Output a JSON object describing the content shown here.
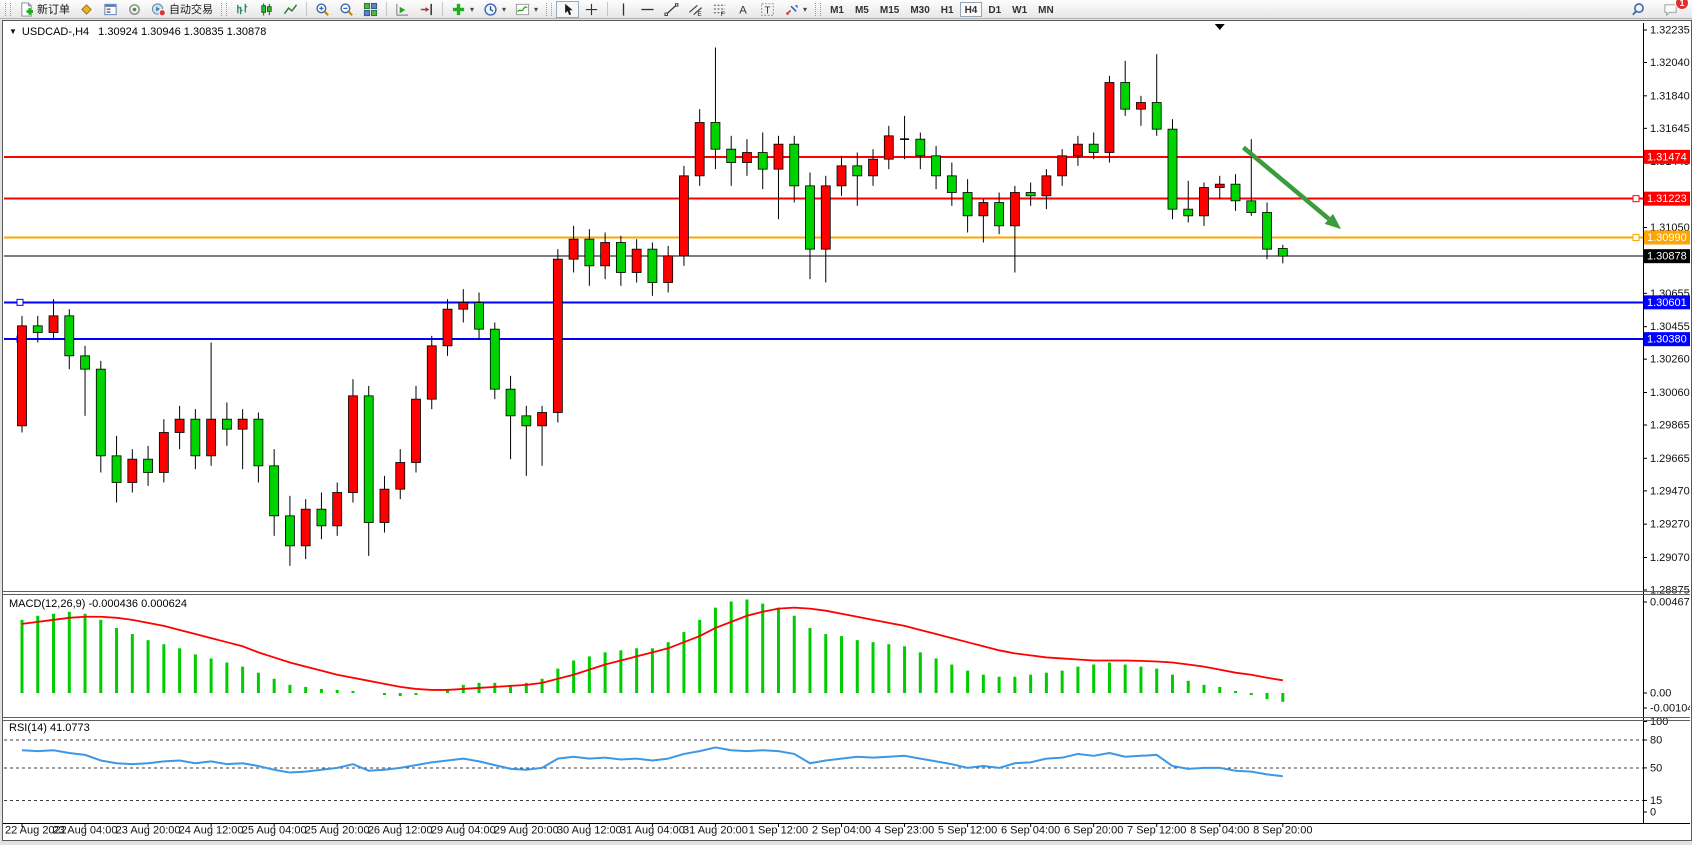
{
  "toolbar": {
    "new_order_label": "新订单",
    "auto_trading_label": "自动交易",
    "timeframes": [
      "M1",
      "M5",
      "M15",
      "M30",
      "H1",
      "H4",
      "D1",
      "W1",
      "MN"
    ],
    "active_timeframe": "H4",
    "notification_count": "1",
    "icons": {
      "new-order-icon": "document with green plus",
      "profiles-icon": "gold diamond",
      "market-watch-icon": "blue window",
      "signals-icon": "gray ring with green dot",
      "auto-trading-icon": "teal circle with red stop badge",
      "bar-chart-icon": "ohlc bars",
      "candle-chart-icon": "green candlesticks",
      "line-chart-icon": "green zigzag line",
      "zoom-in-icon": "magnifier plus",
      "zoom-out-icon": "magnifier minus",
      "tile-windows-icon": "four colored tiles",
      "auto-scroll-icon": "green play triangle on axes",
      "chart-shift-icon": "red arrow to right margin line",
      "indicators-icon": "green plus",
      "periods-icon": "blue clock",
      "templates-icon": "chart with green wave",
      "cursor-icon": "black pointer arrow",
      "crosshair-icon": "plus crosshair",
      "vline-icon": "vertical line",
      "hline-icon": "horizontal line",
      "trendline-icon": "diagonal line with end squares",
      "channel-icon": "parallel diagonals with E",
      "fibonacci-icon": "dashed levels with F",
      "text-icon": "letter A",
      "text-label-icon": "dashed box with T",
      "arrows-icon": "red and blue arrows",
      "search-icon": "blue magnifier",
      "chat-icon": "speech bubble with red badge"
    }
  },
  "chart": {
    "dropdown_glyph": "▼",
    "symbol_period": "USDCAD-,H4",
    "ohlc_text": "1.30924 1.30946 1.30835 1.30878",
    "macd_label": "MACD(12,26,9) -0.000436 0.000624",
    "rsi_label": "RSI(14) 41.0773"
  },
  "chart_data": {
    "type": "candlestick",
    "symbol": "USDCAD-",
    "timeframe": "H4",
    "convention": "red = bullish, green = bearish (CN colors)",
    "bull_color": "#FF0000",
    "bear_color": "#00D400",
    "current_bar": {
      "open": 1.30924,
      "high": 1.30946,
      "low": 1.30835,
      "close": 1.30878
    },
    "price_range": {
      "top": 1.32253,
      "bottom": 1.2885
    },
    "price_ticks": [
      1.32235,
      1.3204,
      1.3184,
      1.31645,
      1.31445,
      1.3105,
      1.30655,
      1.30455,
      1.3026,
      1.3006,
      1.29865,
      1.29665,
      1.2947,
      1.2927,
      1.2907,
      1.28875
    ],
    "time_labels": [
      "22 Aug 2022",
      "23 Aug 04:00",
      "23 Aug 20:00",
      "24 Aug 12:00",
      "25 Aug 04:00",
      "25 Aug 20:00",
      "26 Aug 12:00",
      "29 Aug 04:00",
      "29 Aug 20:00",
      "30 Aug 12:00",
      "31 Aug 04:00",
      "31 Aug 20:00",
      "1 Sep 12:00",
      "2 Sep 04:00",
      "4 Sep 23:00",
      "5 Sep 12:00",
      "6 Sep 04:00",
      "6 Sep 20:00",
      "7 Sep 12:00",
      "8 Sep 04:00",
      "8 Sep 20:00"
    ],
    "bars_per_label": 4,
    "candles": [
      [
        1.2986,
        1.3052,
        1.2982,
        1.3046
      ],
      [
        1.3046,
        1.3052,
        1.3036,
        1.3042
      ],
      [
        1.3042,
        1.3062,
        1.3038,
        1.3052
      ],
      [
        1.3052,
        1.3056,
        1.302,
        1.3028
      ],
      [
        1.3028,
        1.3034,
        1.2992,
        1.302
      ],
      [
        1.302,
        1.3025,
        1.2958,
        1.2968
      ],
      [
        1.2968,
        1.298,
        1.294,
        1.2952
      ],
      [
        1.2952,
        1.2972,
        1.2946,
        1.2966
      ],
      [
        1.2966,
        1.2974,
        1.295,
        1.2958
      ],
      [
        1.2958,
        1.299,
        1.2952,
        1.2982
      ],
      [
        1.2982,
        1.2998,
        1.2972,
        1.299
      ],
      [
        1.299,
        1.2996,
        1.296,
        1.2968
      ],
      [
        1.2968,
        1.3036,
        1.2962,
        1.299
      ],
      [
        1.299,
        1.3,
        1.2974,
        1.2984
      ],
      [
        1.2984,
        1.2996,
        1.296,
        1.299
      ],
      [
        1.299,
        1.2994,
        1.2952,
        1.2962
      ],
      [
        1.2962,
        1.2972,
        1.292,
        1.2932
      ],
      [
        1.2932,
        1.2944,
        1.2902,
        1.2914
      ],
      [
        1.2914,
        1.2942,
        1.2906,
        1.2936
      ],
      [
        1.2936,
        1.2946,
        1.2918,
        1.2926
      ],
      [
        1.2926,
        1.2952,
        1.292,
        1.2946
      ],
      [
        1.2946,
        1.3014,
        1.294,
        1.3004
      ],
      [
        1.3004,
        1.301,
        1.2908,
        1.2928
      ],
      [
        1.2928,
        1.2956,
        1.2922,
        1.2948
      ],
      [
        1.2948,
        1.2972,
        1.2942,
        1.2964
      ],
      [
        1.2964,
        1.301,
        1.2958,
        1.3002
      ],
      [
        1.3002,
        1.304,
        1.2996,
        1.3034
      ],
      [
        1.3034,
        1.3062,
        1.3028,
        1.3056
      ],
      [
        1.3056,
        1.3068,
        1.3048,
        1.306
      ],
      [
        1.306,
        1.3066,
        1.3038,
        1.3044
      ],
      [
        1.3044,
        1.3048,
        1.3002,
        1.3008
      ],
      [
        1.3008,
        1.3016,
        1.2966,
        1.2992
      ],
      [
        1.2992,
        1.2998,
        1.2956,
        1.2986
      ],
      [
        1.2986,
        1.2998,
        1.2962,
        1.2994
      ],
      [
        1.2994,
        1.3092,
        1.2988,
        1.3086
      ],
      [
        1.3086,
        1.3106,
        1.3078,
        1.3098
      ],
      [
        1.3098,
        1.3104,
        1.307,
        1.3082
      ],
      [
        1.3082,
        1.3102,
        1.3074,
        1.3096
      ],
      [
        1.3096,
        1.31,
        1.307,
        1.3078
      ],
      [
        1.3078,
        1.3098,
        1.3072,
        1.3092
      ],
      [
        1.3092,
        1.3096,
        1.3064,
        1.3072
      ],
      [
        1.3072,
        1.3094,
        1.3066,
        1.3088
      ],
      [
        1.3088,
        1.3142,
        1.3082,
        1.3136
      ],
      [
        1.3136,
        1.3176,
        1.313,
        1.3168
      ],
      [
        1.3168,
        1.3213,
        1.314,
        1.3152
      ],
      [
        1.3152,
        1.316,
        1.313,
        1.3144
      ],
      [
        1.3144,
        1.3158,
        1.3136,
        1.315
      ],
      [
        1.315,
        1.3162,
        1.3128,
        1.314
      ],
      [
        1.314,
        1.316,
        1.311,
        1.3155
      ],
      [
        1.3155,
        1.316,
        1.312,
        1.313
      ],
      [
        1.313,
        1.3138,
        1.3074,
        1.3092
      ],
      [
        1.3092,
        1.3136,
        1.3072,
        1.313
      ],
      [
        1.313,
        1.3148,
        1.3124,
        1.3142
      ],
      [
        1.3142,
        1.315,
        1.3118,
        1.3136
      ],
      [
        1.3136,
        1.3152,
        1.313,
        1.3146
      ],
      [
        1.3146,
        1.3166,
        1.314,
        1.316
      ],
      [
        1.3158,
        1.3172,
        1.3146,
        1.3158
      ],
      [
        1.3158,
        1.3162,
        1.314,
        1.3148
      ],
      [
        1.3148,
        1.3154,
        1.3128,
        1.3136
      ],
      [
        1.3136,
        1.3144,
        1.3118,
        1.3126
      ],
      [
        1.3126,
        1.3134,
        1.3102,
        1.3112
      ],
      [
        1.3112,
        1.3122,
        1.3096,
        1.312
      ],
      [
        1.312,
        1.3126,
        1.3101,
        1.3106
      ],
      [
        1.3106,
        1.313,
        1.3078,
        1.3126
      ],
      [
        1.3126,
        1.3132,
        1.3118,
        1.3124
      ],
      [
        1.3124,
        1.314,
        1.3116,
        1.3136
      ],
      [
        1.3136,
        1.3152,
        1.313,
        1.3148
      ],
      [
        1.3148,
        1.316,
        1.3142,
        1.3155
      ],
      [
        1.3155,
        1.3162,
        1.3146,
        1.315
      ],
      [
        1.315,
        1.3196,
        1.3144,
        1.3192
      ],
      [
        1.3192,
        1.3205,
        1.3172,
        1.3176
      ],
      [
        1.3176,
        1.3184,
        1.3166,
        1.318
      ],
      [
        1.318,
        1.3209,
        1.316,
        1.3164
      ],
      [
        1.3164,
        1.317,
        1.311,
        1.3116
      ],
      [
        1.3116,
        1.3133,
        1.3108,
        1.3112
      ],
      [
        1.3112,
        1.3132,
        1.3106,
        1.3129
      ],
      [
        1.3129,
        1.3136,
        1.3122,
        1.3131
      ],
      [
        1.3131,
        1.3137,
        1.3115,
        1.3121
      ],
      [
        1.3121,
        1.3158,
        1.3112,
        1.3114
      ],
      [
        1.3114,
        1.312,
        1.3086,
        1.3092
      ],
      [
        1.30924,
        1.30946,
        1.30835,
        1.30878
      ]
    ],
    "hlines": [
      {
        "price": 1.31474,
        "color": "#FF0000",
        "width": 2,
        "label": "1.31474"
      },
      {
        "price": 1.31223,
        "color": "#FF0000",
        "width": 2,
        "label": "1.31223",
        "handle": "right"
      },
      {
        "price": 1.3099,
        "color": "#FFA500",
        "width": 2,
        "label": "1.30990",
        "handle": "right"
      },
      {
        "price": 1.30878,
        "color": "#000000",
        "width": 1,
        "label": "1.30878",
        "role": "last-price"
      },
      {
        "price": 1.30601,
        "color": "#0000FF",
        "width": 2,
        "label": "1.30601",
        "handle": "left"
      },
      {
        "price": 1.3038,
        "color": "#0000FF",
        "width": 2,
        "label": "1.30380",
        "handle": "left"
      }
    ],
    "arrow": {
      "color": "#3C9B3C",
      "from": {
        "bar": 77.5,
        "price": 1.3153
      },
      "to": {
        "bar": 83.7,
        "price": 1.3104
      }
    },
    "shift_marker_bar": 76,
    "macd": {
      "params": "12,26,9",
      "value": -0.000436,
      "signal_value": 0.000624,
      "hist_color": "#00CC00",
      "signal_color": "#FF0000",
      "ticks": [
        {
          "v": 0.004671,
          "label": "0.004671"
        },
        {
          "v": 0,
          "label": "0.00"
        },
        {
          "v": -0.001044,
          "label": "-0.001044"
        }
      ],
      "histogram": [
        0.0036,
        0.0038,
        0.0039,
        0.004,
        0.0039,
        0.0036,
        0.0032,
        0.0029,
        0.0026,
        0.0024,
        0.0022,
        0.0019,
        0.0017,
        0.0015,
        0.0013,
        0.001,
        0.0007,
        0.0004,
        0.0003,
        0.0002,
        0.00015,
        0.0001,
        0.0,
        -0.0001,
        -0.00015,
        -0.0001,
        0.0,
        0.0002,
        0.0004,
        0.0005,
        0.0005,
        0.0004,
        0.0005,
        0.0007,
        0.0012,
        0.0016,
        0.0018,
        0.002,
        0.0021,
        0.0022,
        0.0022,
        0.0025,
        0.003,
        0.0036,
        0.0042,
        0.0045,
        0.0046,
        0.0044,
        0.0042,
        0.0038,
        0.0032,
        0.0029,
        0.0028,
        0.0026,
        0.0025,
        0.0024,
        0.0023,
        0.002,
        0.0017,
        0.0014,
        0.0011,
        0.0009,
        0.0008,
        0.0008,
        0.0009,
        0.001,
        0.0011,
        0.0013,
        0.0014,
        0.0015,
        0.0014,
        0.0013,
        0.0012,
        0.0009,
        0.0006,
        0.0004,
        0.0003,
        0.0001,
        -0.0001,
        -0.0003,
        -0.000436
      ],
      "signal": [
        0.0034,
        0.0035,
        0.0036,
        0.0037,
        0.00375,
        0.00375,
        0.0037,
        0.0036,
        0.00345,
        0.0033,
        0.0031,
        0.0029,
        0.0027,
        0.0025,
        0.0023,
        0.002,
        0.00175,
        0.0015,
        0.0013,
        0.0011,
        0.0009,
        0.00075,
        0.0006,
        0.00045,
        0.0003,
        0.0002,
        0.00015,
        0.00015,
        0.0002,
        0.00025,
        0.0003,
        0.00035,
        0.0004,
        0.0005,
        0.0007,
        0.0009,
        0.00115,
        0.0014,
        0.0016,
        0.0018,
        0.002,
        0.0022,
        0.0025,
        0.0028,
        0.0032,
        0.0035,
        0.0038,
        0.004,
        0.00415,
        0.0042,
        0.00415,
        0.00405,
        0.0039,
        0.00375,
        0.0036,
        0.00345,
        0.0033,
        0.0031,
        0.0029,
        0.0027,
        0.0025,
        0.0023,
        0.0021,
        0.00195,
        0.00185,
        0.00175,
        0.0017,
        0.00165,
        0.0016,
        0.0016,
        0.0016,
        0.00158,
        0.00155,
        0.0015,
        0.0014,
        0.0013,
        0.00115,
        0.001,
        0.0009,
        0.00075,
        0.000624
      ]
    },
    "rsi": {
      "period": 14,
      "value": 41.0773,
      "color": "#3E97E6",
      "levels": [
        80,
        50,
        15
      ],
      "ticks": [
        {
          "v": 100,
          "label": "100"
        },
        {
          "v": 80,
          "label": "80"
        },
        {
          "v": 50,
          "label": "50"
        },
        {
          "v": 15,
          "label": "15"
        },
        {
          "v": 0,
          "label": "0"
        }
      ],
      "values": [
        69,
        68,
        69,
        66,
        64,
        58,
        55,
        54,
        55,
        57,
        58,
        55,
        57,
        54,
        55,
        52,
        48,
        45,
        46,
        48,
        50,
        54,
        47,
        48,
        50,
        53,
        56,
        58,
        60,
        57,
        53,
        49,
        48,
        50,
        60,
        62,
        60,
        61,
        59,
        60,
        58,
        60,
        65,
        68,
        72,
        69,
        68,
        69,
        68,
        65,
        55,
        58,
        60,
        62,
        61,
        62,
        63,
        60,
        57,
        54,
        50,
        52,
        50,
        55,
        56,
        60,
        61,
        65,
        63,
        66,
        62,
        63,
        64,
        52,
        49,
        50,
        50,
        47,
        46,
        43,
        41
      ]
    }
  }
}
